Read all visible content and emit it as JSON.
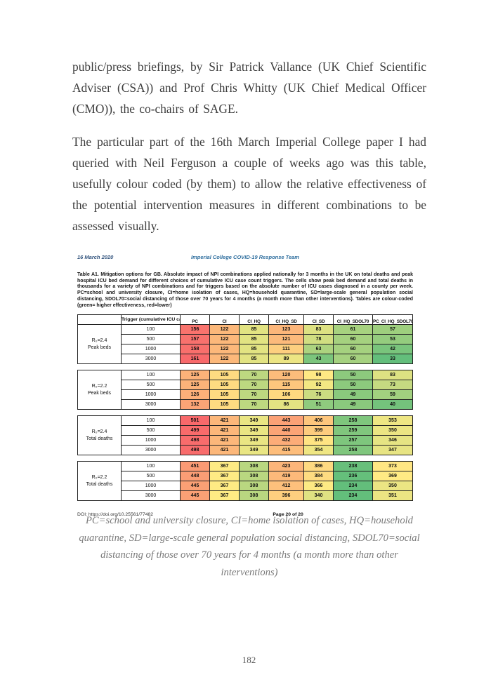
{
  "page": {
    "paragraphs": [
      "public/press briefings, by Sir Patrick Vallance (UK Chief Scientific Adviser (CSA)) and Prof Chris Whitty (UK Chief Medical Officer (CMO)), the co-chairs of SAGE.",
      "The particular part of the 16th March Imperial College paper I had queried with Neil Ferguson a couple of weeks ago was this table, usefully colour coded (by them) to allow the relative effectiveness of the potential intervention measures in different combinations to be assessed visually."
    ],
    "image_caption": "PC=school and university closure, CI=home isolation of cases, HQ=household quarantine, SD=large-scale general population social distancing, SDOL70=social distancing of those over 70 years for 4 months (a month more than other interventions)",
    "page_number": "182"
  },
  "embed": {
    "doc_date": "16 March 2020",
    "doc_team": "Imperial College COVID-19 Response Team",
    "table_caption": "Table A1. Mitigation options for GB. Absolute impact of NPI combinations applied nationally for 3 months in the UK on total deaths and peak hospital ICU bed demand for different choices of cumulative ICU case count triggers. The cells show peak bed demand and total deaths in thousands for a variety of NPI combinations and for triggers based on the absolute number of ICU cases diagnosed in a county per week. PC=school and university closure, CI=home isolation of cases, HQ=household quarantine, SD=large-scale general population social distancing, SDOL70=social distancing of those over 70 years for 4 months (a month more than other interventions). Tables are colour-coded (green= higher effectiveness, red=lower)",
    "doi": "DOI: https://doi.org/10.25561/77482",
    "page_label": "Page 20 of 20"
  },
  "chart_data": {
    "type": "table",
    "trigger_header": "Trigger (cumulative ICU cases)",
    "columns": [
      "PC",
      "CI",
      "CI_HQ",
      "CI_HQ_SD",
      "CI_SD",
      "CI_HQ_SDOL70",
      "PC_CI_HQ_SDOL70"
    ],
    "color_scale": {
      "low": "#63BE7B",
      "mid": "#FFEB84",
      "high": "#F8696B"
    },
    "blocks": [
      {
        "r0": "R₀=2.4",
        "metric": "Peak beds",
        "scale_group": "peak_beds",
        "rows": [
          {
            "trigger": "100",
            "values": [
              156,
              122,
              85,
              123,
              83,
              61,
              57
            ]
          },
          {
            "trigger": "500",
            "values": [
              157,
              122,
              85,
              121,
              78,
              60,
              53
            ]
          },
          {
            "trigger": "1000",
            "values": [
              158,
              122,
              85,
              111,
              63,
              60,
              42
            ]
          },
          {
            "trigger": "3000",
            "values": [
              161,
              122,
              85,
              89,
              43,
              60,
              33
            ]
          }
        ]
      },
      {
        "r0": "R₀=2.2",
        "metric": "Peak beds",
        "scale_group": "peak_beds",
        "rows": [
          {
            "trigger": "100",
            "values": [
              125,
              105,
              70,
              120,
              98,
              50,
              83
            ]
          },
          {
            "trigger": "500",
            "values": [
              125,
              105,
              70,
              115,
              92,
              50,
              73
            ]
          },
          {
            "trigger": "1000",
            "values": [
              126,
              105,
              70,
              106,
              76,
              49,
              59
            ]
          },
          {
            "trigger": "3000",
            "values": [
              132,
              105,
              70,
              86,
              51,
              49,
              40
            ]
          }
        ]
      },
      {
        "r0": "R₀=2.4",
        "metric": "Total deaths",
        "scale_group": "total_deaths",
        "rows": [
          {
            "trigger": "100",
            "values": [
              501,
              421,
              349,
              443,
              406,
              258,
              353
            ]
          },
          {
            "trigger": "500",
            "values": [
              499,
              421,
              349,
              440,
              399,
              259,
              350
            ]
          },
          {
            "trigger": "1000",
            "values": [
              498,
              421,
              349,
              432,
              375,
              257,
              346
            ]
          },
          {
            "trigger": "3000",
            "values": [
              498,
              421,
              349,
              415,
              354,
              258,
              347
            ]
          }
        ]
      },
      {
        "r0": "R₀=2.2",
        "metric": "Total deaths",
        "scale_group": "total_deaths",
        "rows": [
          {
            "trigger": "100",
            "values": [
              451,
              367,
              308,
              423,
              386,
              238,
              373
            ]
          },
          {
            "trigger": "500",
            "values": [
              448,
              367,
              308,
              419,
              384,
              236,
              369
            ]
          },
          {
            "trigger": "1000",
            "values": [
              445,
              367,
              308,
              412,
              366,
              234,
              350
            ]
          },
          {
            "trigger": "3000",
            "values": [
              445,
              367,
              308,
              396,
              340,
              234,
              351
            ]
          }
        ]
      }
    ]
  }
}
